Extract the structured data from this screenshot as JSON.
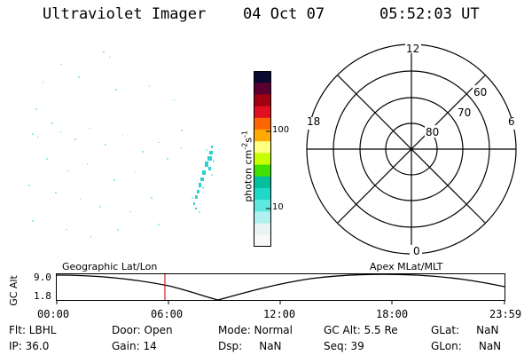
{
  "header": {
    "title": "Ultraviolet Imager",
    "date": "04 Oct 07",
    "time": "05:52:03 UT"
  },
  "colorbar": {
    "label_main": "photon cm",
    "label_exp1": "-2",
    "label_mid": "s",
    "label_exp2": "-1",
    "ticks": [
      "100",
      "10"
    ],
    "colors": [
      "#0a0a30",
      "#5a0030",
      "#a00010",
      "#e01020",
      "#ff6600",
      "#ffaa00",
      "#ffff80",
      "#c8ff00",
      "#40e000",
      "#00c0a0",
      "#20d8c8",
      "#60e8e0",
      "#b0f0f0",
      "#e8f4f4",
      "#f8f8f8"
    ]
  },
  "polar": {
    "mlt_labels": {
      "top": "12",
      "left": "18",
      "right": "6",
      "bottom": "0"
    },
    "lat_labels": [
      "60",
      "70",
      "80"
    ]
  },
  "timeseries": {
    "left_title": "Geographic Lat/Lon",
    "right_title": "Apex MLat/MLT",
    "ylabel": "GC Alt",
    "y_ticks": [
      "9.0",
      "1.8"
    ],
    "x_ticks": [
      "00:00",
      "06:00",
      "12:00",
      "18:00",
      "23:59"
    ],
    "marker_time": "05:52:03"
  },
  "info": {
    "flt": "Flt: LBHL",
    "ip": "IP: 36.0",
    "door": "Door: Open",
    "gain": "Gain: 14",
    "mode": "Mode: Normal",
    "dsp": "Dsp:     NaN",
    "gcalt": "GC Alt: 5.5 Re",
    "seq": "Seq: 39",
    "glat": "GLat:     NaN",
    "glon": "GLon:     NaN"
  }
}
